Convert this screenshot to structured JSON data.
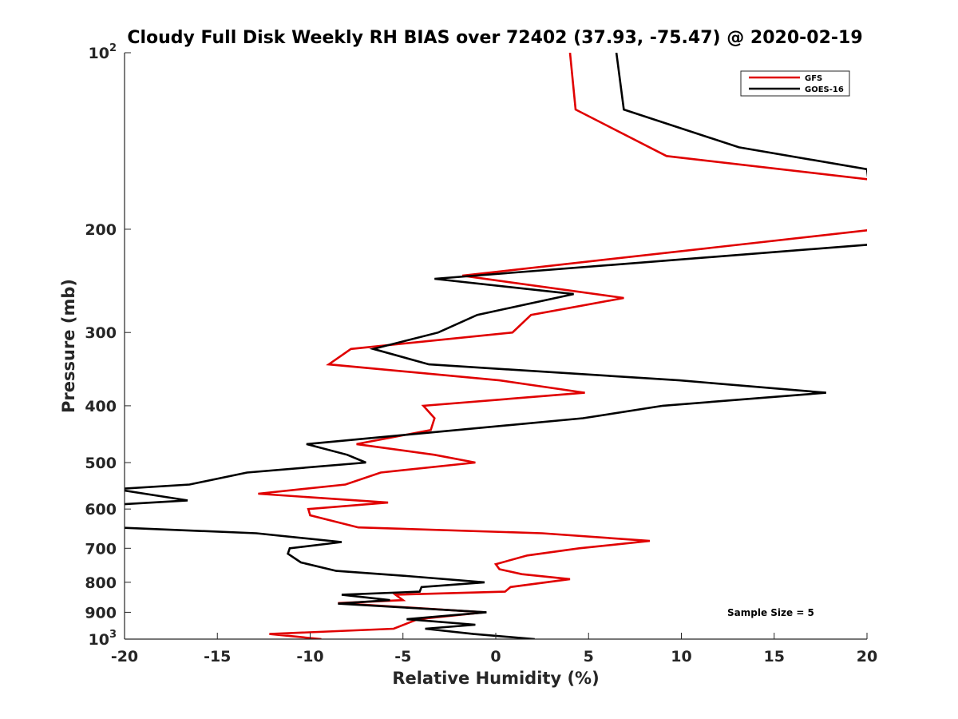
{
  "chart_data": {
    "type": "line",
    "title": "Cloudy Full Disk Weekly RH BIAS over 72402 (37.93, -75.47) @ 2020-02-19",
    "xlabel": "Relative Humidity (%)",
    "ylabel": "Pressure (mb)",
    "xlim": [
      -20,
      20
    ],
    "ylim": [
      100,
      1000
    ],
    "yscale": "log",
    "y_reversed": true,
    "grid": false,
    "legend_position": "top-right",
    "annotation": "Sample Size = 5",
    "x_ticks": [
      "-20",
      "-15",
      "-10",
      "-5",
      "0",
      "5",
      "10",
      "15",
      "20"
    ],
    "y_ticks": [
      {
        "value": 100,
        "base": "10",
        "exp": "2"
      },
      {
        "value": 200,
        "base": "200",
        "exp": ""
      },
      {
        "value": 300,
        "base": "300",
        "exp": ""
      },
      {
        "value": 400,
        "base": "400",
        "exp": ""
      },
      {
        "value": 500,
        "base": "500",
        "exp": ""
      },
      {
        "value": 600,
        "base": "600",
        "exp": ""
      },
      {
        "value": 700,
        "base": "700",
        "exp": ""
      },
      {
        "value": 800,
        "base": "800",
        "exp": ""
      },
      {
        "value": 900,
        "base": "900",
        "exp": ""
      },
      {
        "value": 1000,
        "base": "10",
        "exp": "3"
      }
    ],
    "series": [
      {
        "name": "GFS",
        "color": "#e00000",
        "points": [
          [
            4.0,
            100
          ],
          [
            4.3,
            125
          ],
          [
            9.2,
            150
          ],
          [
            20.5,
            165
          ],
          [
            20.5,
            200
          ],
          [
            -1.8,
            240
          ],
          [
            6.9,
            262
          ],
          [
            1.9,
            280
          ],
          [
            0.9,
            300
          ],
          [
            -7.8,
            320
          ],
          [
            -9.0,
            340
          ],
          [
            0.2,
            362
          ],
          [
            4.8,
            380
          ],
          [
            -3.9,
            400
          ],
          [
            -3.3,
            420
          ],
          [
            -3.5,
            440
          ],
          [
            -7.5,
            465
          ],
          [
            -3.3,
            485
          ],
          [
            -1.1,
            500
          ],
          [
            -6.2,
            520
          ],
          [
            -8.1,
            545
          ],
          [
            -12.8,
            565
          ],
          [
            -5.8,
            585
          ],
          [
            -10.1,
            600
          ],
          [
            -10.0,
            615
          ],
          [
            -7.4,
            645
          ],
          [
            2.5,
            660
          ],
          [
            8.3,
            680
          ],
          [
            4.5,
            700
          ],
          [
            1.7,
            720
          ],
          [
            0.0,
            745
          ],
          [
            0.2,
            760
          ],
          [
            1.4,
            775
          ],
          [
            4.0,
            790
          ],
          [
            0.8,
            815
          ],
          [
            0.5,
            830
          ],
          [
            -5.4,
            840
          ],
          [
            -5.0,
            858
          ],
          [
            -8.5,
            868
          ],
          [
            -0.6,
            900
          ],
          [
            -4.2,
            925
          ],
          [
            -5.5,
            960
          ],
          [
            -12.2,
            980
          ],
          [
            -9.4,
            1000
          ]
        ]
      },
      {
        "name": "GOES-16",
        "color": "#000000",
        "points": [
          [
            6.5,
            100
          ],
          [
            6.9,
            125
          ],
          [
            13.1,
            145
          ],
          [
            20.0,
            158
          ],
          [
            20.5,
            212
          ],
          [
            -3.3,
            243
          ],
          [
            4.2,
            258
          ],
          [
            -1.0,
            280
          ],
          [
            -3.1,
            300
          ],
          [
            -6.6,
            320
          ],
          [
            -3.6,
            340
          ],
          [
            9.9,
            362
          ],
          [
            17.8,
            380
          ],
          [
            9.0,
            400
          ],
          [
            4.7,
            420
          ],
          [
            -10.2,
            465
          ],
          [
            -8.0,
            485
          ],
          [
            -7.0,
            500
          ],
          [
            -13.4,
            520
          ],
          [
            -16.5,
            545
          ],
          [
            -20.5,
            555
          ],
          [
            -16.6,
            580
          ],
          [
            -20.5,
            590
          ],
          [
            -20.5,
            645
          ],
          [
            -12.9,
            660
          ],
          [
            -8.3,
            683
          ],
          [
            -11.1,
            700
          ],
          [
            -11.2,
            715
          ],
          [
            -10.5,
            740
          ],
          [
            -8.6,
            765
          ],
          [
            -4.9,
            780
          ],
          [
            -0.6,
            800
          ],
          [
            -4.0,
            815
          ],
          [
            -4.1,
            830
          ],
          [
            -8.3,
            840
          ],
          [
            -5.7,
            858
          ],
          [
            -8.5,
            870
          ],
          [
            -0.5,
            900
          ],
          [
            -4.8,
            925
          ],
          [
            -1.1,
            945
          ],
          [
            -3.8,
            960
          ],
          [
            -1.2,
            980
          ],
          [
            2.1,
            1000
          ]
        ]
      }
    ]
  }
}
